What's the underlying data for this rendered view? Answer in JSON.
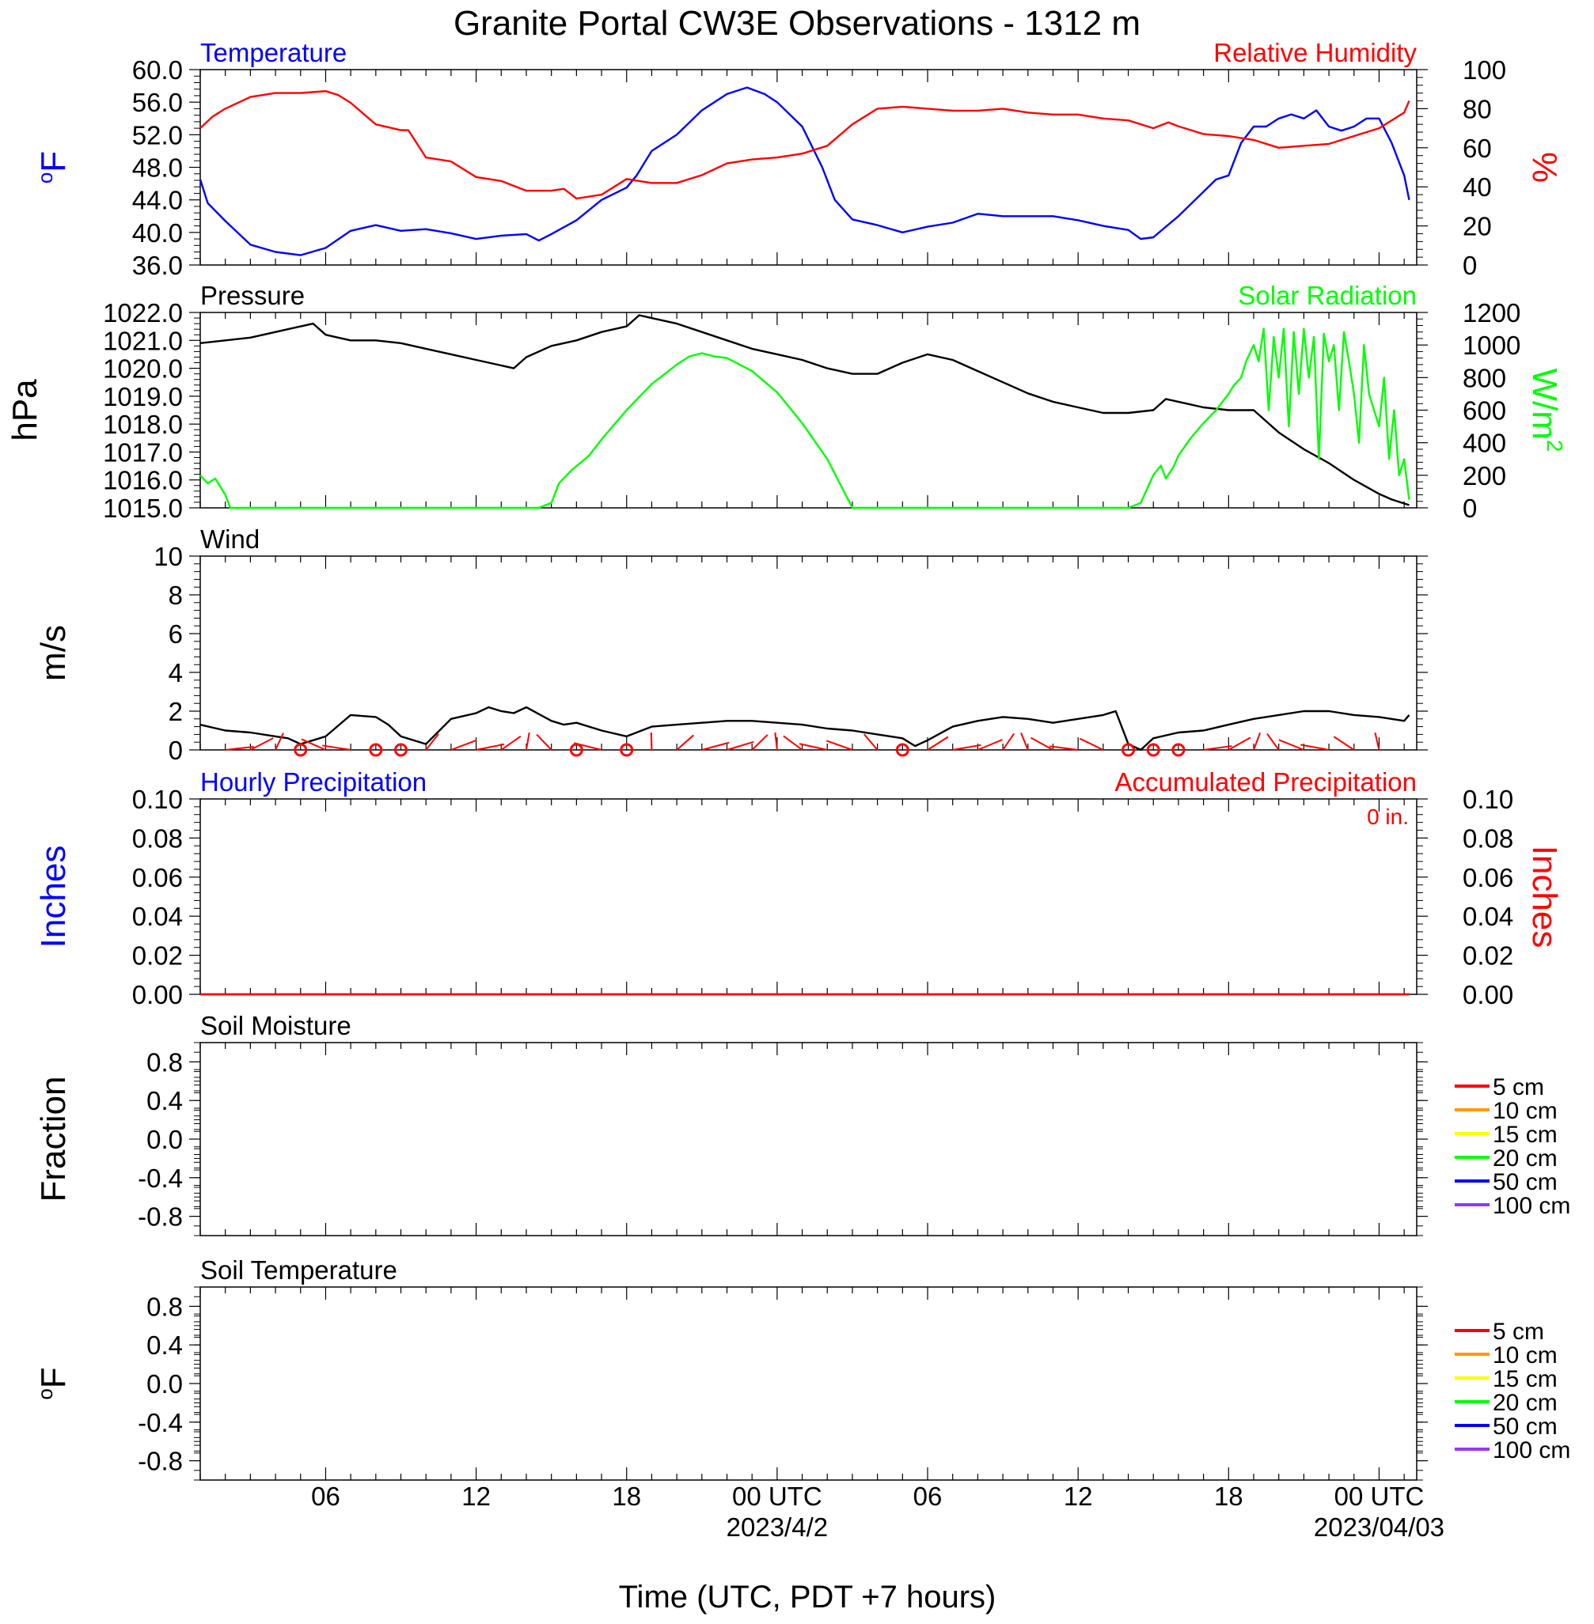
{
  "title": "Granite Portal CW3E Observations - 1312 m",
  "colors": {
    "temperature": "#0000ff",
    "humidity": "#ff0000",
    "pressure": "#000000",
    "solar": "#00ff00",
    "wind": "#000000",
    "wind_barb": "#ff0000",
    "hourly_precip": "#0000ff",
    "accum_precip": "#ff0000"
  },
  "time_axis": {
    "label": "Time (UTC, PDT +7 hours)",
    "range_hours": [
      0,
      48.5
    ],
    "ticks": [
      {
        "hour": 5,
        "label": "06"
      },
      {
        "hour": 11,
        "label": "12"
      },
      {
        "hour": 17,
        "label": "18"
      },
      {
        "hour": 23,
        "label": "00 UTC",
        "date": "2023/4/2"
      },
      {
        "hour": 29,
        "label": "06"
      },
      {
        "hour": 35,
        "label": "12"
      },
      {
        "hour": 41,
        "label": "18"
      },
      {
        "hour": 47,
        "label": "00 UTC",
        "date": "2023/04/03"
      }
    ]
  },
  "chart_data": [
    {
      "type": "line",
      "title": "Temperature",
      "title_right": "Relative Humidity",
      "ylabel": "oF",
      "ylabel_right": "%",
      "ylim": [
        36,
        60
      ],
      "ylim_right": [
        0,
        100
      ],
      "yticks": [
        "36.0",
        "40.0",
        "44.0",
        "48.0",
        "52.0",
        "56.0",
        "60.0"
      ],
      "yticks_right": [
        "0",
        "20",
        "40",
        "60",
        "80",
        "100"
      ],
      "grid": false,
      "series": [
        {
          "name": "Temperature",
          "axis": "left",
          "color": "#0000ff",
          "x": [
            0,
            0.3,
            1,
            2,
            3,
            4,
            5,
            6,
            7,
            8,
            9,
            10,
            11,
            12,
            13,
            13.5,
            14,
            15,
            16,
            17,
            17.4,
            18,
            19,
            20,
            21,
            21.8,
            22.5,
            23,
            24,
            24.8,
            25.3,
            26,
            27,
            28,
            29,
            30,
            31,
            32,
            33,
            34,
            35,
            36,
            37,
            37.5,
            38,
            39,
            40,
            40.5,
            41,
            41.5,
            42,
            42.5,
            43,
            43.5,
            44,
            44.5,
            45,
            45.5,
            46,
            46.5,
            47,
            47.5,
            48,
            48.2
          ],
          "y": [
            46.5,
            43.6,
            41.4,
            38.5,
            37.6,
            37.2,
            38.1,
            40.2,
            40.9,
            40.2,
            40.4,
            39.9,
            39.2,
            39.6,
            39.8,
            39.0,
            39.8,
            41.5,
            44.0,
            45.5,
            47.0,
            50.0,
            52.0,
            55.0,
            57.0,
            57.8,
            57.0,
            56.0,
            53.0,
            48.0,
            44.0,
            41.6,
            40.9,
            40.0,
            40.7,
            41.2,
            42.3,
            42.0,
            42.0,
            42.0,
            41.5,
            40.8,
            40.3,
            39.2,
            39.4,
            42.0,
            45.0,
            46.5,
            47.0,
            51.0,
            53.0,
            53.0,
            54.0,
            54.5,
            54.0,
            55.0,
            53.0,
            52.5,
            53.0,
            54.0,
            54.0,
            51.0,
            47.0,
            44.0
          ]
        },
        {
          "name": "Relative Humidity",
          "axis": "right",
          "color": "#ff0000",
          "x": [
            0,
            0.5,
            1,
            2,
            3,
            4,
            5,
            5.5,
            6,
            7,
            8,
            8.3,
            9,
            10,
            11,
            12,
            13,
            14,
            14.5,
            15,
            16,
            17,
            18,
            19,
            20,
            21,
            22,
            23,
            24,
            25,
            26,
            27,
            28,
            29,
            30,
            31,
            32,
            33,
            34,
            35,
            36,
            37,
            38,
            38.6,
            39,
            40,
            41,
            42,
            43,
            44,
            45,
            46,
            47,
            48,
            48.2
          ],
          "y": [
            70,
            76,
            80,
            86,
            88,
            88,
            89,
            87,
            83,
            72,
            69,
            69,
            55,
            53,
            45,
            43,
            38,
            38,
            39,
            34,
            36,
            44,
            42,
            42,
            46,
            52,
            54,
            55,
            57,
            61,
            72,
            80,
            81,
            80,
            79,
            79,
            80,
            78,
            77,
            77,
            75,
            74,
            70,
            73,
            71,
            67,
            66,
            64,
            60,
            61,
            62,
            66,
            70,
            78,
            84
          ]
        }
      ]
    },
    {
      "type": "line",
      "title": "Pressure",
      "title_right": "Solar Radiation",
      "ylabel": "hPa",
      "ylabel_right": "W/m2",
      "ylim": [
        1015,
        1022
      ],
      "ylim_right": [
        0,
        1200
      ],
      "yticks": [
        "1015.0",
        "1016.0",
        "1017.0",
        "1018.0",
        "1019.0",
        "1020.0",
        "1021.0",
        "1022.0"
      ],
      "yticks_right": [
        "0",
        "200",
        "400",
        "600",
        "800",
        "1000",
        "1200"
      ],
      "grid": false,
      "series": [
        {
          "name": "Pressure",
          "axis": "left",
          "color": "#000000",
          "x": [
            0,
            1,
            2,
            3,
            4,
            4.5,
            5,
            5.5,
            6,
            7,
            8,
            9,
            10,
            11,
            12,
            12.5,
            13,
            14,
            15,
            16,
            17,
            17.5,
            18,
            19,
            20,
            21,
            22,
            23,
            24,
            25,
            26,
            27,
            28,
            29,
            30,
            31,
            32,
            33,
            34,
            35,
            36,
            37,
            38,
            38.5,
            39,
            40,
            41,
            42,
            43,
            44,
            45,
            46,
            47,
            47.5,
            48.2
          ],
          "y": [
            1020.9,
            1021.0,
            1021.1,
            1021.3,
            1021.5,
            1021.6,
            1021.2,
            1021.1,
            1021.0,
            1021.0,
            1020.9,
            1020.7,
            1020.5,
            1020.3,
            1020.1,
            1020.0,
            1020.4,
            1020.8,
            1021.0,
            1021.3,
            1021.5,
            1021.9,
            1021.8,
            1021.6,
            1021.3,
            1021.0,
            1020.7,
            1020.5,
            1020.3,
            1020.0,
            1019.8,
            1019.8,
            1020.2,
            1020.5,
            1020.3,
            1019.9,
            1019.5,
            1019.1,
            1018.8,
            1018.6,
            1018.4,
            1018.4,
            1018.5,
            1018.9,
            1018.8,
            1018.6,
            1018.5,
            1018.5,
            1017.7,
            1017.1,
            1016.6,
            1016.0,
            1015.5,
            1015.3,
            1015.1
          ]
        },
        {
          "name": "Solar Radiation",
          "axis": "right",
          "color": "#00ff00",
          "x": [
            0,
            0.3,
            0.6,
            1,
            1.2,
            13.5,
            14,
            14.3,
            14.8,
            15.5,
            16,
            17,
            18,
            19,
            19.5,
            20,
            20.5,
            21,
            22,
            23,
            24,
            25,
            26,
            35,
            37,
            37.5,
            38,
            38.3,
            38.5,
            38.8,
            39,
            39.5,
            40,
            40.5,
            41,
            41.2,
            41.5,
            41.7,
            42,
            42.2,
            42.4,
            42.6,
            42.8,
            43,
            43.2,
            43.4,
            43.6,
            43.8,
            44,
            44.2,
            44.4,
            44.6,
            44.8,
            45,
            45.2,
            45.4,
            45.6,
            45.8,
            46,
            46.2,
            46.4,
            46.6,
            46.8,
            47,
            47.2,
            47.4,
            47.6,
            47.8,
            48,
            48.2
          ],
          "y": [
            200,
            150,
            180,
            80,
            0,
            0,
            30,
            150,
            230,
            320,
            420,
            600,
            760,
            880,
            930,
            950,
            930,
            920,
            840,
            710,
            520,
            300,
            0,
            0,
            0,
            30,
            200,
            260,
            180,
            250,
            320,
            430,
            520,
            600,
            700,
            750,
            800,
            900,
            1000,
            900,
            1100,
            600,
            1050,
            800,
            1100,
            500,
            1080,
            700,
            1100,
            800,
            1050,
            300,
            1070,
            900,
            1000,
            600,
            1080,
            900,
            700,
            400,
            1000,
            700,
            600,
            500,
            800,
            300,
            600,
            200,
            300,
            50
          ]
        }
      ]
    },
    {
      "type": "line",
      "title": "Wind",
      "ylabel": "m/s",
      "ylim": [
        0,
        10
      ],
      "yticks": [
        "0",
        "2",
        "4",
        "6",
        "8",
        "10"
      ],
      "grid": false,
      "series": [
        {
          "name": "Wind",
          "axis": "left",
          "color": "#000000",
          "x": [
            0,
            1,
            2,
            3,
            3.5,
            4,
            4.5,
            5,
            6,
            7,
            7.5,
            8,
            9,
            10,
            11,
            11.5,
            12,
            12.5,
            13,
            14,
            14.5,
            15,
            16,
            17,
            18,
            19,
            20,
            21,
            22,
            23,
            24,
            25,
            26,
            27,
            28,
            28.5,
            29,
            30,
            31,
            32,
            33,
            34,
            35,
            36,
            36.5,
            37,
            37.5,
            38,
            39,
            40,
            41,
            42,
            43,
            44,
            45,
            46,
            47,
            48,
            48.2
          ],
          "y": [
            1.3,
            1.0,
            0.9,
            0.7,
            0.6,
            0.3,
            0.5,
            0.7,
            1.8,
            1.7,
            1.3,
            0.7,
            0.3,
            1.6,
            1.9,
            2.2,
            2.0,
            1.9,
            2.2,
            1.5,
            1.3,
            1.4,
            1.0,
            0.7,
            1.2,
            1.3,
            1.4,
            1.5,
            1.5,
            1.4,
            1.3,
            1.1,
            1.0,
            0.8,
            0.6,
            0.2,
            0.5,
            1.2,
            1.5,
            1.7,
            1.6,
            1.4,
            1.6,
            1.8,
            2.0,
            0.3,
            0.0,
            0.6,
            0.9,
            1.0,
            1.3,
            1.6,
            1.8,
            2.0,
            2.0,
            1.8,
            1.7,
            1.5,
            1.8
          ]
        }
      ],
      "wind_barbs_hours": [
        1,
        2,
        3,
        4,
        5,
        6,
        7,
        8,
        9,
        10,
        11,
        12,
        13,
        14,
        15,
        16,
        17,
        18,
        19,
        20,
        21,
        22,
        23,
        24,
        25,
        26,
        27,
        28,
        29,
        30,
        31,
        32,
        33,
        34,
        35,
        36,
        37,
        38,
        39,
        40,
        41,
        42,
        43,
        44,
        45,
        46,
        47
      ],
      "calm_hours": [
        4,
        7,
        8,
        15,
        17,
        28,
        37,
        38,
        39
      ]
    },
    {
      "type": "line",
      "title": "Hourly Precipitation",
      "title_right": "Accumulated Precipitation",
      "annotation_right": "0 in.",
      "ylabel": "Inches",
      "ylabel_right": "Inches",
      "ylim": [
        0,
        0.1
      ],
      "ylim_right": [
        0,
        0.1
      ],
      "yticks": [
        "0.00",
        "0.02",
        "0.04",
        "0.06",
        "0.08",
        "0.10"
      ],
      "yticks_right": [
        "0.00",
        "0.02",
        "0.04",
        "0.06",
        "0.08",
        "0.10"
      ],
      "grid": false,
      "series": [
        {
          "name": "Hourly Precipitation",
          "axis": "left",
          "color": "#0000ff",
          "x": [
            0,
            48.2
          ],
          "y": [
            0,
            0
          ]
        },
        {
          "name": "Accumulated Precipitation",
          "axis": "right",
          "color": "#ff0000",
          "x": [
            0,
            48.2
          ],
          "y": [
            0,
            0
          ]
        }
      ]
    },
    {
      "type": "line",
      "title": "Soil Moisture",
      "ylabel": "Fraction",
      "ylim": [
        -1,
        1
      ],
      "yticks": [
        "-0.8",
        "-0.4",
        "0.0",
        "0.4",
        "0.8"
      ],
      "grid": false,
      "legend": [
        {
          "name": "5 cm",
          "color": "#ff0000"
        },
        {
          "name": "10 cm",
          "color": "#ff9900"
        },
        {
          "name": "15 cm",
          "color": "#ffff00"
        },
        {
          "name": "20 cm",
          "color": "#00ff00"
        },
        {
          "name": "50 cm",
          "color": "#0000ff"
        },
        {
          "name": "100 cm",
          "color": "#9933ff"
        }
      ],
      "series": []
    },
    {
      "type": "line",
      "title": "Soil Temperature",
      "ylabel": "oF",
      "ylim": [
        -1,
        1
      ],
      "yticks": [
        "-0.8",
        "-0.4",
        "0.0",
        "0.4",
        "0.8"
      ],
      "grid": false,
      "legend": [
        {
          "name": "5 cm",
          "color": "#ff0000"
        },
        {
          "name": "10 cm",
          "color": "#ff9900"
        },
        {
          "name": "15 cm",
          "color": "#ffff00"
        },
        {
          "name": "20 cm",
          "color": "#00ff00"
        },
        {
          "name": "50 cm",
          "color": "#0000ff"
        },
        {
          "name": "100 cm",
          "color": "#9933ff"
        }
      ],
      "series": []
    }
  ]
}
